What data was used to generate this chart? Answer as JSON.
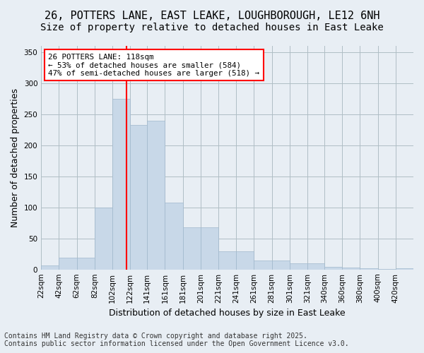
{
  "title_line1": "26, POTTERS LANE, EAST LEAKE, LOUGHBOROUGH, LE12 6NH",
  "title_line2": "Size of property relative to detached houses in East Leake",
  "xlabel": "Distribution of detached houses by size in East Leake",
  "ylabel": "Number of detached properties",
  "bar_color": "#c8d8e8",
  "bar_edge_color": "#a0b8cc",
  "background_color": "#e8eef4",
  "annotation_text": "26 POTTERS LANE: 118sqm\n← 53% of detached houses are smaller (584)\n47% of semi-detached houses are larger (518) →",
  "annotation_box_color": "white",
  "annotation_box_edge": "red",
  "vline_x": 118,
  "vline_color": "red",
  "footer_line1": "Contains HM Land Registry data © Crown copyright and database right 2025.",
  "footer_line2": "Contains public sector information licensed under the Open Government Licence v3.0.",
  "categories": [
    "22sqm",
    "42sqm",
    "62sqm",
    "82sqm",
    "102sqm",
    "122sqm",
    "141sqm",
    "161sqm",
    "181sqm",
    "201sqm",
    "221sqm",
    "241sqm",
    "261sqm",
    "281sqm",
    "301sqm",
    "321sqm",
    "340sqm",
    "360sqm",
    "380sqm",
    "400sqm",
    "420sqm"
  ],
  "bin_edges": [
    22,
    42,
    62,
    82,
    102,
    122,
    141,
    161,
    181,
    201,
    221,
    241,
    261,
    281,
    301,
    321,
    340,
    360,
    380,
    400,
    420,
    440
  ],
  "values": [
    7,
    19,
    19,
    100,
    275,
    233,
    240,
    108,
    68,
    68,
    29,
    29,
    14,
    14,
    10,
    10,
    4,
    3,
    2,
    1,
    2
  ],
  "ylim": [
    0,
    360
  ],
  "yticks": [
    0,
    50,
    100,
    150,
    200,
    250,
    300,
    350
  ],
  "grid_color": "#b0bec5",
  "title_fontsize": 11,
  "subtitle_fontsize": 10,
  "axis_label_fontsize": 9,
  "tick_fontsize": 7.5,
  "footer_fontsize": 7
}
